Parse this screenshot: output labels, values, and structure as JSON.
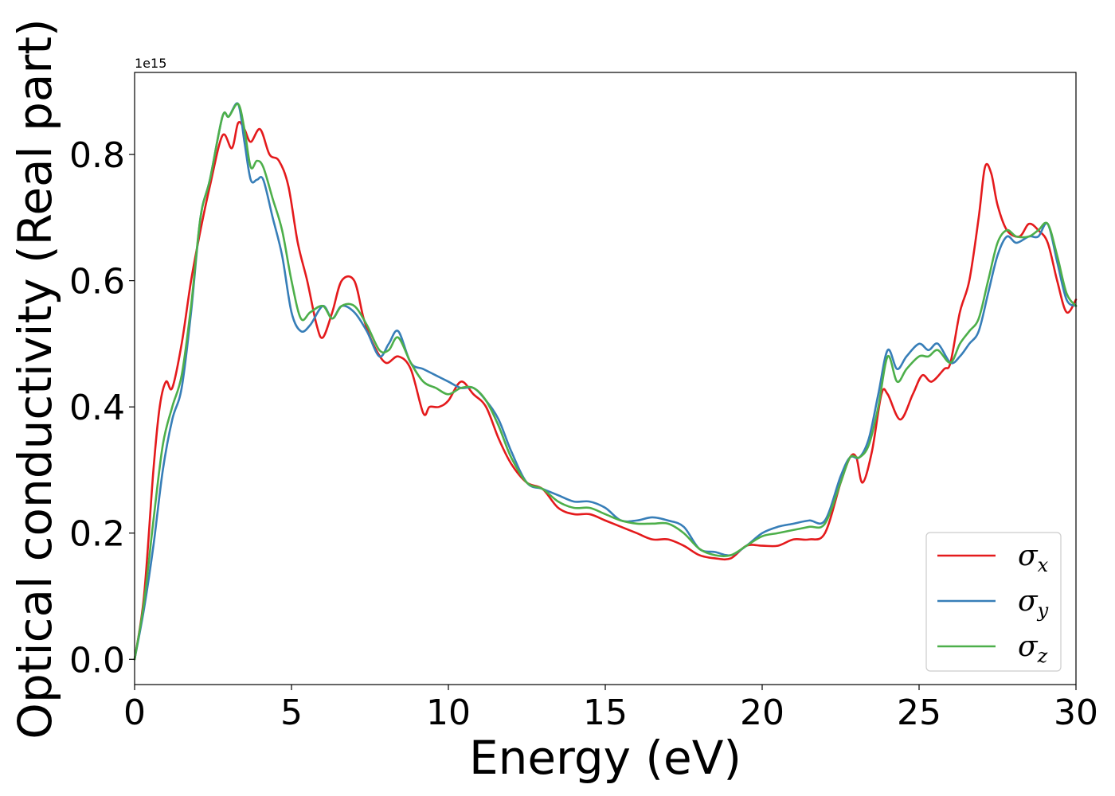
{
  "chart_data": {
    "type": "line",
    "title": "",
    "xlabel": "Energy (eV)",
    "ylabel": "Optical conductivity (Real part)",
    "y_offset_label": "1e15",
    "xlim": [
      0,
      30
    ],
    "ylim": [
      -0.04,
      0.93
    ],
    "xticks": [
      0,
      5,
      10,
      15,
      20,
      25,
      30
    ],
    "xtick_labels": [
      "0",
      "5",
      "10",
      "15",
      "20",
      "25",
      "30"
    ],
    "yticks": [
      0.0,
      0.2,
      0.4,
      0.6,
      0.8
    ],
    "ytick_labels": [
      "0.0",
      "0.2",
      "0.4",
      "0.6",
      "0.8"
    ],
    "grid": false,
    "legend_position": "lower-right",
    "series": [
      {
        "name": "σx",
        "symbol": "σ",
        "subscript": "x",
        "color": "#e41a1c",
        "x": [
          0,
          0.3,
          0.6,
          0.8,
          1.0,
          1.2,
          1.5,
          1.8,
          2.1,
          2.4,
          2.8,
          3.1,
          3.3,
          3.5,
          3.7,
          4.0,
          4.3,
          4.6,
          4.9,
          5.2,
          5.5,
          5.8,
          6.0,
          6.3,
          6.6,
          7.0,
          7.3,
          7.6,
          8.0,
          8.4,
          8.8,
          9.2,
          9.4,
          9.7,
          10.0,
          10.4,
          10.8,
          11.2,
          11.6,
          12.0,
          12.5,
          13.0,
          13.5,
          14.0,
          14.5,
          15.0,
          15.5,
          16.0,
          16.5,
          17.0,
          17.5,
          18.0,
          18.5,
          19.0,
          19.5,
          20.0,
          20.5,
          21.0,
          21.5,
          22.0,
          22.5,
          22.8,
          23.0,
          23.2,
          23.5,
          23.8,
          24.0,
          24.4,
          24.8,
          25.1,
          25.4,
          25.8,
          26.0,
          26.3,
          26.6,
          26.9,
          27.1,
          27.3,
          27.5,
          27.8,
          28.2,
          28.5,
          28.8,
          29.1,
          29.4,
          29.7,
          30.0
        ],
        "y": [
          0.0,
          0.1,
          0.3,
          0.4,
          0.44,
          0.43,
          0.5,
          0.6,
          0.68,
          0.75,
          0.83,
          0.81,
          0.85,
          0.84,
          0.82,
          0.84,
          0.8,
          0.79,
          0.75,
          0.66,
          0.6,
          0.53,
          0.51,
          0.55,
          0.6,
          0.6,
          0.54,
          0.5,
          0.47,
          0.48,
          0.46,
          0.39,
          0.4,
          0.4,
          0.41,
          0.44,
          0.42,
          0.4,
          0.35,
          0.31,
          0.28,
          0.27,
          0.24,
          0.23,
          0.23,
          0.22,
          0.21,
          0.2,
          0.19,
          0.19,
          0.18,
          0.165,
          0.16,
          0.16,
          0.18,
          0.18,
          0.18,
          0.19,
          0.19,
          0.2,
          0.28,
          0.32,
          0.32,
          0.28,
          0.33,
          0.42,
          0.42,
          0.38,
          0.42,
          0.45,
          0.44,
          0.46,
          0.47,
          0.55,
          0.6,
          0.7,
          0.78,
          0.77,
          0.72,
          0.68,
          0.67,
          0.69,
          0.68,
          0.66,
          0.6,
          0.55,
          0.57
        ]
      },
      {
        "name": "σy",
        "symbol": "σ",
        "subscript": "y",
        "color": "#377eb8",
        "x": [
          0,
          0.3,
          0.6,
          0.9,
          1.2,
          1.5,
          1.8,
          2.1,
          2.4,
          2.8,
          3.0,
          3.3,
          3.5,
          3.7,
          3.9,
          4.1,
          4.4,
          4.7,
          5.0,
          5.3,
          5.6,
          6.0,
          6.3,
          6.6,
          7.0,
          7.4,
          7.8,
          8.1,
          8.4,
          8.8,
          9.2,
          9.6,
          10.0,
          10.4,
          10.8,
          11.2,
          11.6,
          12.0,
          12.5,
          13.0,
          13.5,
          14.0,
          14.5,
          15.0,
          15.5,
          16.0,
          16.5,
          17.0,
          17.5,
          18.0,
          18.5,
          19.0,
          19.5,
          20.0,
          20.5,
          21.0,
          21.5,
          22.0,
          22.5,
          22.8,
          23.1,
          23.4,
          23.7,
          24.0,
          24.3,
          24.6,
          25.0,
          25.3,
          25.6,
          26.0,
          26.3,
          26.6,
          26.9,
          27.2,
          27.5,
          27.8,
          28.1,
          28.5,
          28.8,
          29.1,
          29.4,
          29.7,
          30.0
        ],
        "y": [
          0.0,
          0.08,
          0.18,
          0.3,
          0.38,
          0.43,
          0.55,
          0.7,
          0.76,
          0.86,
          0.86,
          0.88,
          0.82,
          0.76,
          0.76,
          0.76,
          0.7,
          0.64,
          0.55,
          0.52,
          0.53,
          0.56,
          0.54,
          0.56,
          0.55,
          0.52,
          0.48,
          0.5,
          0.52,
          0.47,
          0.46,
          0.45,
          0.44,
          0.43,
          0.43,
          0.41,
          0.38,
          0.33,
          0.28,
          0.27,
          0.26,
          0.25,
          0.25,
          0.24,
          0.22,
          0.22,
          0.225,
          0.22,
          0.21,
          0.175,
          0.17,
          0.165,
          0.18,
          0.2,
          0.21,
          0.215,
          0.22,
          0.22,
          0.29,
          0.32,
          0.32,
          0.35,
          0.42,
          0.49,
          0.46,
          0.48,
          0.5,
          0.49,
          0.5,
          0.47,
          0.48,
          0.5,
          0.52,
          0.58,
          0.64,
          0.67,
          0.66,
          0.67,
          0.67,
          0.69,
          0.63,
          0.57,
          0.56
        ]
      },
      {
        "name": "σz",
        "symbol": "σ",
        "subscript": "z",
        "color": "#4daf4a",
        "x": [
          0,
          0.3,
          0.6,
          0.9,
          1.2,
          1.5,
          1.8,
          2.1,
          2.4,
          2.8,
          3.0,
          3.3,
          3.5,
          3.7,
          3.9,
          4.1,
          4.4,
          4.7,
          5.0,
          5.3,
          5.6,
          6.0,
          6.3,
          6.6,
          7.0,
          7.4,
          7.8,
          8.1,
          8.4,
          8.8,
          9.2,
          9.6,
          10.0,
          10.4,
          10.8,
          11.2,
          11.6,
          12.0,
          12.5,
          13.0,
          13.5,
          14.0,
          14.5,
          15.0,
          15.5,
          16.0,
          16.5,
          17.0,
          17.5,
          18.0,
          18.5,
          19.0,
          19.5,
          20.0,
          20.5,
          21.0,
          21.5,
          22.0,
          22.5,
          22.8,
          23.1,
          23.4,
          23.7,
          24.0,
          24.3,
          24.6,
          25.0,
          25.3,
          25.6,
          26.0,
          26.3,
          26.6,
          26.9,
          27.2,
          27.5,
          27.8,
          28.1,
          28.5,
          28.8,
          29.1,
          29.4,
          29.7,
          30.0
        ],
        "y": [
          0.0,
          0.09,
          0.22,
          0.34,
          0.4,
          0.45,
          0.56,
          0.7,
          0.76,
          0.86,
          0.86,
          0.88,
          0.84,
          0.78,
          0.79,
          0.78,
          0.73,
          0.68,
          0.6,
          0.54,
          0.55,
          0.56,
          0.54,
          0.56,
          0.56,
          0.53,
          0.49,
          0.49,
          0.51,
          0.47,
          0.44,
          0.43,
          0.42,
          0.43,
          0.43,
          0.41,
          0.37,
          0.32,
          0.28,
          0.27,
          0.25,
          0.24,
          0.24,
          0.23,
          0.22,
          0.215,
          0.215,
          0.215,
          0.2,
          0.175,
          0.165,
          0.165,
          0.18,
          0.195,
          0.2,
          0.205,
          0.21,
          0.215,
          0.28,
          0.32,
          0.32,
          0.34,
          0.4,
          0.48,
          0.44,
          0.46,
          0.48,
          0.48,
          0.49,
          0.47,
          0.5,
          0.52,
          0.54,
          0.6,
          0.66,
          0.68,
          0.67,
          0.67,
          0.68,
          0.69,
          0.64,
          0.58,
          0.56
        ]
      }
    ]
  }
}
